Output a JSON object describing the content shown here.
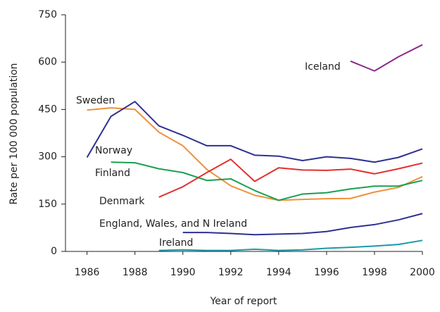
{
  "chart_data": {
    "type": "line",
    "y_label": "Rate per 100 000 population",
    "x_label": "Year of report",
    "x": [
      1986,
      1987,
      1988,
      1989,
      1990,
      1991,
      1992,
      1993,
      1994,
      1995,
      1996,
      1997,
      1998,
      1999,
      2000
    ],
    "series": [
      {
        "name": "Sweden",
        "color": "#f0903a",
        "values": [
          448,
          455,
          450,
          378,
          335,
          260,
          208,
          178,
          162,
          165,
          167,
          168,
          188,
          203,
          237
        ]
      },
      {
        "name": "Norway",
        "color": "#2e3192",
        "values": [
          298,
          428,
          475,
          398,
          368,
          335,
          335,
          305,
          302,
          288,
          300,
          295,
          283,
          298,
          325
        ]
      },
      {
        "name": "Finland",
        "color": "#1aa050",
        "values": [
          null,
          283,
          281,
          262,
          250,
          225,
          230,
          193,
          162,
          182,
          186,
          198,
          207,
          207,
          225
        ]
      },
      {
        "name": "Denmark",
        "color": "#e03030",
        "values": [
          null,
          null,
          null,
          172,
          205,
          250,
          292,
          222,
          265,
          258,
          257,
          261,
          246,
          262,
          280
        ]
      },
      {
        "name": "England, Wales, and N Ireland",
        "color": "#2e3192",
        "values": [
          null,
          null,
          null,
          null,
          60,
          60,
          57,
          53,
          55,
          57,
          63,
          76,
          85,
          100,
          120
        ]
      },
      {
        "name": "Ireland",
        "color": "#1a9aaa",
        "values": [
          null,
          null,
          null,
          3,
          5,
          3,
          3,
          7,
          3,
          5,
          10,
          13,
          17,
          22,
          35
        ]
      },
      {
        "name": "Iceland",
        "color": "#8b2a8b",
        "values": [
          null,
          null,
          null,
          null,
          null,
          null,
          null,
          null,
          null,
          null,
          null,
          603,
          572,
          617,
          655
        ]
      }
    ],
    "xlim": [
      1985.1,
      2000
    ],
    "xticks": [
      1986,
      1988,
      1990,
      1992,
      1994,
      1996,
      1998,
      2000
    ],
    "ylim": [
      0,
      750
    ],
    "yticks": [
      0,
      150,
      300,
      450,
      600,
      750
    ],
    "grid": false
  }
}
